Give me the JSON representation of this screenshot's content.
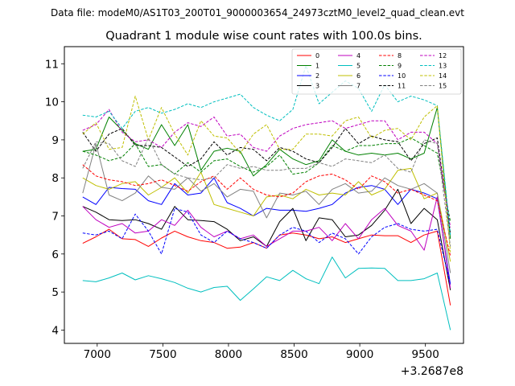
{
  "header": {
    "suptitle": "Data file: modeM0/AS1T03_200T01_9000003654_24973cztM0_level2_quad_clean.evt"
  },
  "chart_data": {
    "type": "line",
    "title": "Quadrant 1 module wise count rates with 100.0s bins.",
    "xlabel": "",
    "ylabel": "",
    "x_offset_label": "+3.2687e8",
    "xlim": [
      6750,
      9790
    ],
    "ylim": [
      3.65,
      11.45
    ],
    "x_ticks": [
      7000,
      7500,
      8000,
      8500,
      9000,
      9500
    ],
    "x_tick_labels": [
      "7000",
      "7500",
      "8000",
      "8500",
      "9000",
      "9500"
    ],
    "y_ticks": [
      4,
      5,
      6,
      7,
      8,
      9,
      10,
      11
    ],
    "y_tick_labels": [
      "4",
      "5",
      "6",
      "7",
      "8",
      "9",
      "10",
      "11"
    ],
    "grid": false,
    "legend_placement": "top-right",
    "legend_columns": 4,
    "x": [
      6890,
      6990,
      7090,
      7190,
      7290,
      7390,
      7490,
      7590,
      7690,
      7790,
      7890,
      7990,
      8090,
      8190,
      8290,
      8390,
      8490,
      8590,
      8690,
      8790,
      8890,
      8990,
      9090,
      9190,
      9290,
      9390,
      9490,
      9590,
      9690
    ],
    "series": [
      {
        "name": "0",
        "color": "#ff0000",
        "dash": "solid",
        "values": [
          6.28,
          6.45,
          6.65,
          6.4,
          6.38,
          6.2,
          6.42,
          6.6,
          6.45,
          6.35,
          6.3,
          6.15,
          6.18,
          6.3,
          6.15,
          6.5,
          6.55,
          6.5,
          6.4,
          6.45,
          6.3,
          6.4,
          6.5,
          6.48,
          6.48,
          6.3,
          6.5,
          6.6,
          4.65
        ]
      },
      {
        "name": "1",
        "color": "#008000",
        "dash": "solid",
        "values": [
          8.7,
          8.75,
          9.6,
          9.25,
          8.9,
          8.75,
          9.4,
          8.85,
          9.4,
          8.2,
          8.7,
          8.78,
          8.7,
          8.05,
          8.35,
          8.75,
          8.5,
          8.35,
          8.45,
          9.0,
          8.7,
          8.6,
          8.65,
          8.6,
          8.65,
          8.5,
          8.65,
          9.85,
          6.4
        ]
      },
      {
        "name": "2",
        "color": "#0000ff",
        "dash": "solid",
        "values": [
          7.5,
          7.3,
          7.75,
          7.72,
          7.7,
          7.4,
          7.3,
          7.85,
          7.55,
          7.6,
          8.0,
          7.35,
          7.2,
          7.0,
          7.2,
          7.15,
          7.15,
          7.12,
          7.2,
          7.3,
          7.6,
          7.75,
          7.8,
          7.7,
          7.3,
          7.7,
          7.6,
          7.45,
          5.2
        ]
      },
      {
        "name": "3",
        "color": "#000000",
        "dash": "solid",
        "values": [
          7.25,
          7.1,
          6.9,
          6.88,
          6.9,
          6.8,
          6.65,
          7.25,
          6.9,
          6.88,
          6.85,
          6.65,
          6.35,
          6.45,
          6.2,
          6.85,
          7.2,
          6.35,
          6.95,
          6.9,
          6.45,
          6.5,
          6.75,
          7.15,
          7.7,
          6.8,
          7.2,
          6.9,
          5.05
        ]
      },
      {
        "name": "4",
        "color": "#bf00bf",
        "dash": "solid",
        "values": [
          7.25,
          6.9,
          6.7,
          6.8,
          6.55,
          6.6,
          6.9,
          6.75,
          7.15,
          6.7,
          6.45,
          6.6,
          6.4,
          6.5,
          6.2,
          6.4,
          6.6,
          6.6,
          6.7,
          6.35,
          6.8,
          6.4,
          6.9,
          7.2,
          6.75,
          6.6,
          6.1,
          7.5,
          5.1
        ]
      },
      {
        "name": "5",
        "color": "#00bfbf",
        "dash": "solid",
        "values": [
          5.3,
          5.27,
          5.37,
          5.5,
          5.32,
          5.43,
          5.35,
          5.25,
          5.1,
          5.0,
          5.12,
          5.15,
          4.78,
          5.08,
          5.4,
          5.3,
          5.57,
          5.35,
          5.22,
          5.92,
          5.37,
          5.62,
          5.63,
          5.62,
          5.3,
          5.3,
          5.35,
          5.5,
          4.0
        ]
      },
      {
        "name": "6",
        "color": "#bfbf00",
        "dash": "solid",
        "values": [
          8.0,
          7.8,
          7.7,
          7.85,
          7.9,
          7.55,
          7.75,
          8.0,
          7.6,
          8.15,
          7.3,
          7.2,
          7.1,
          7.0,
          7.5,
          7.55,
          7.45,
          7.7,
          7.55,
          7.6,
          7.55,
          7.9,
          7.55,
          7.7,
          8.2,
          8.25,
          7.45,
          7.6,
          5.8
        ]
      },
      {
        "name": "7",
        "color": "#808080",
        "dash": "solid",
        "values": [
          7.6,
          8.9,
          7.55,
          7.4,
          7.6,
          8.05,
          7.75,
          7.7,
          8.0,
          7.65,
          7.85,
          7.5,
          7.7,
          7.65,
          6.95,
          7.6,
          7.55,
          7.65,
          7.3,
          7.7,
          7.85,
          7.6,
          7.65,
          8.0,
          7.8,
          7.7,
          7.85,
          7.6,
          5.5
        ]
      },
      {
        "name": "8",
        "color": "#ff0000",
        "dash": "dashed",
        "values": [
          8.35,
          8.05,
          7.95,
          7.9,
          7.8,
          7.85,
          7.95,
          7.8,
          7.65,
          7.9,
          8.05,
          7.7,
          8.0,
          7.7,
          7.55,
          7.5,
          7.6,
          7.9,
          8.05,
          8.1,
          7.95,
          7.7,
          8.05,
          7.9,
          7.6,
          7.7,
          7.55,
          7.4,
          5.95
        ]
      },
      {
        "name": "9",
        "color": "#008000",
        "dash": "dashed",
        "values": [
          8.7,
          8.6,
          8.45,
          8.55,
          8.9,
          8.3,
          8.35,
          8.1,
          8.4,
          8.15,
          8.45,
          8.5,
          8.3,
          8.15,
          8.3,
          8.6,
          8.1,
          8.15,
          8.4,
          8.85,
          8.7,
          8.85,
          8.85,
          8.9,
          8.9,
          9.05,
          8.85,
          8.65,
          6.85
        ]
      },
      {
        "name": "10",
        "color": "#0000ff",
        "dash": "dashed",
        "values": [
          6.55,
          6.5,
          6.6,
          6.4,
          7.05,
          6.6,
          6.0,
          7.2,
          7.1,
          6.5,
          6.3,
          6.6,
          6.4,
          6.3,
          6.15,
          6.5,
          6.7,
          6.6,
          6.3,
          6.55,
          6.4,
          6.0,
          6.45,
          6.7,
          6.8,
          6.65,
          6.6,
          6.65,
          5.2
        ]
      },
      {
        "name": "11",
        "color": "#000000",
        "dash": "dashed",
        "values": [
          9.2,
          8.7,
          9.15,
          9.3,
          8.85,
          8.85,
          8.8,
          8.55,
          8.3,
          8.5,
          8.95,
          8.6,
          8.8,
          8.75,
          8.45,
          8.8,
          8.7,
          8.5,
          8.4,
          8.8,
          9.3,
          8.9,
          9.1,
          9.0,
          8.95,
          8.45,
          8.9,
          9.05,
          6.55
        ]
      },
      {
        "name": "12",
        "color": "#bf00bf",
        "dash": "dashed",
        "values": [
          9.25,
          9.4,
          9.8,
          9.2,
          8.95,
          9.0,
          8.8,
          9.2,
          9.45,
          9.35,
          9.6,
          9.1,
          9.15,
          8.8,
          8.7,
          9.1,
          9.3,
          9.4,
          9.45,
          9.5,
          9.3,
          9.4,
          9.5,
          9.5,
          9.0,
          9.2,
          9.2,
          8.9,
          6.7
        ]
      },
      {
        "name": "13",
        "color": "#00bfbf",
        "dash": "dashed",
        "values": [
          9.65,
          9.6,
          9.75,
          9.3,
          9.75,
          9.85,
          9.7,
          9.8,
          9.95,
          9.85,
          10.0,
          10.1,
          10.2,
          9.85,
          9.65,
          9.5,
          9.8,
          10.95,
          9.95,
          10.25,
          10.55,
          10.35,
          9.75,
          10.45,
          10.0,
          10.15,
          10.05,
          9.9,
          6.5
        ]
      },
      {
        "name": "14",
        "color": "#bfbf00",
        "dash": "dashed",
        "values": [
          9.15,
          9.45,
          8.75,
          8.8,
          10.15,
          9.0,
          9.85,
          9.15,
          8.6,
          9.5,
          9.1,
          9.05,
          8.65,
          9.15,
          9.4,
          8.75,
          8.75,
          9.15,
          9.15,
          9.1,
          9.5,
          9.6,
          9.05,
          9.25,
          9.3,
          9.0,
          9.6,
          9.9,
          6.05
        ]
      },
      {
        "name": "15",
        "color": "#808080",
        "dash": "dashed",
        "values": [
          8.25,
          8.95,
          8.9,
          8.45,
          8.3,
          9.05,
          8.35,
          8.1,
          8.0,
          7.95,
          8.0,
          8.35,
          8.25,
          8.3,
          8.2,
          8.2,
          8.25,
          8.25,
          8.4,
          8.3,
          8.5,
          8.45,
          8.4,
          8.6,
          8.25,
          8.15,
          9.0,
          8.9,
          6.2
        ]
      }
    ]
  }
}
